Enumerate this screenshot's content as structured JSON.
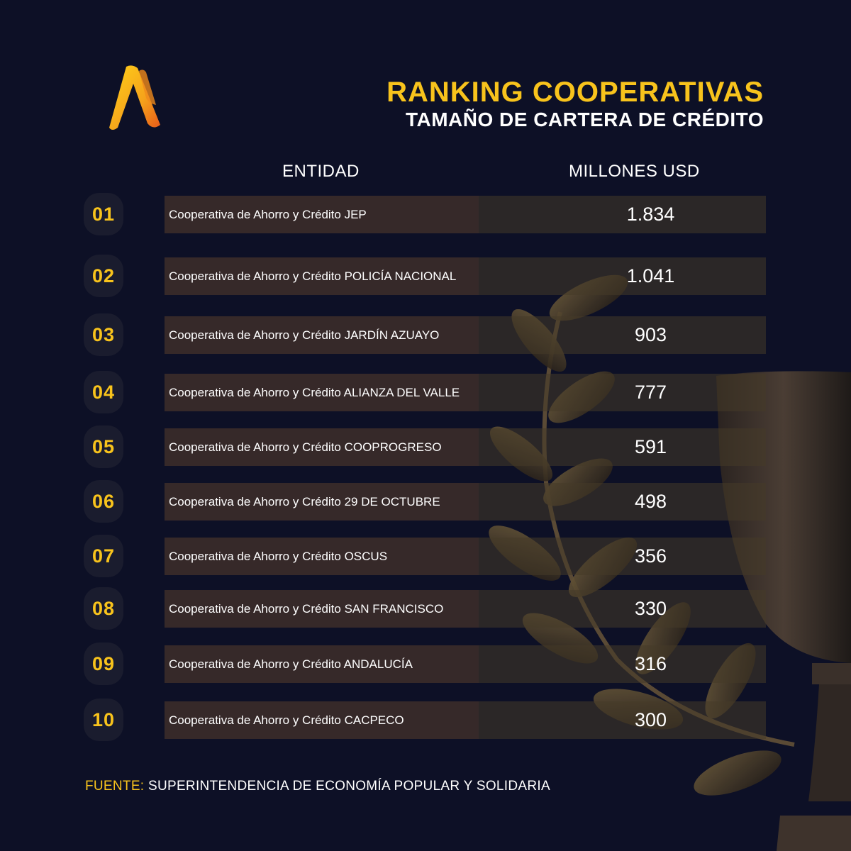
{
  "header": {
    "title": "RANKING COOPERATIVAS",
    "subtitle": "TAMAÑO DE CARTERA DE CRÉDITO"
  },
  "columns": {
    "entity": "ENTIDAD",
    "value": "MILLONES USD"
  },
  "colors": {
    "background": "#0d1026",
    "accent": "#f8c31c",
    "row_fill": "#3c2c2a"
  },
  "chart_data": {
    "type": "table",
    "title": "RANKING COOPERATIVAS",
    "subtitle": "TAMAÑO DE CARTERA DE CRÉDITO",
    "columns": [
      "ENTIDAD",
      "MILLONES USD"
    ],
    "rows": [
      {
        "rank": "01",
        "entity": "Cooperativa de Ahorro y Crédito JEP",
        "value_label": "1.834",
        "value": 1834
      },
      {
        "rank": "02",
        "entity": "Cooperativa de Ahorro y Crédito POLICÍA NACIONAL",
        "value_label": "1.041",
        "value": 1041
      },
      {
        "rank": "03",
        "entity": "Cooperativa de Ahorro y Crédito JARDÍN AZUAYO",
        "value_label": "903",
        "value": 903
      },
      {
        "rank": "04",
        "entity": "Cooperativa de Ahorro y Crédito ALIANZA DEL VALLE",
        "value_label": "777",
        "value": 777
      },
      {
        "rank": "05",
        "entity": "Cooperativa de Ahorro y Crédito COOPROGRESO",
        "value_label": "591",
        "value": 591
      },
      {
        "rank": "06",
        "entity": "Cooperativa de Ahorro y Crédito 29 DE OCTUBRE",
        "value_label": "498",
        "value": 498
      },
      {
        "rank": "07",
        "entity": "Cooperativa de Ahorro y Crédito OSCUS",
        "value_label": "356",
        "value": 356
      },
      {
        "rank": "08",
        "entity": "Cooperativa de Ahorro y Crédito SAN FRANCISCO",
        "value_label": "330",
        "value": 330
      },
      {
        "rank": "09",
        "entity": "Cooperativa de Ahorro y Crédito ANDALUCÍA",
        "value_label": "316",
        "value": 316
      },
      {
        "rank": "10",
        "entity": "Cooperativa de Ahorro y Crédito CACPECO",
        "value_label": "300",
        "value": 300
      }
    ]
  },
  "footer": {
    "label": "FUENTE:",
    "text": "SUPERINTENDENCIA DE ECONOMÍA POPULAR Y SOLIDARIA"
  },
  "icons": {
    "logo": "brand-logo-icon",
    "decoration": "trophy-laurel-icon"
  }
}
